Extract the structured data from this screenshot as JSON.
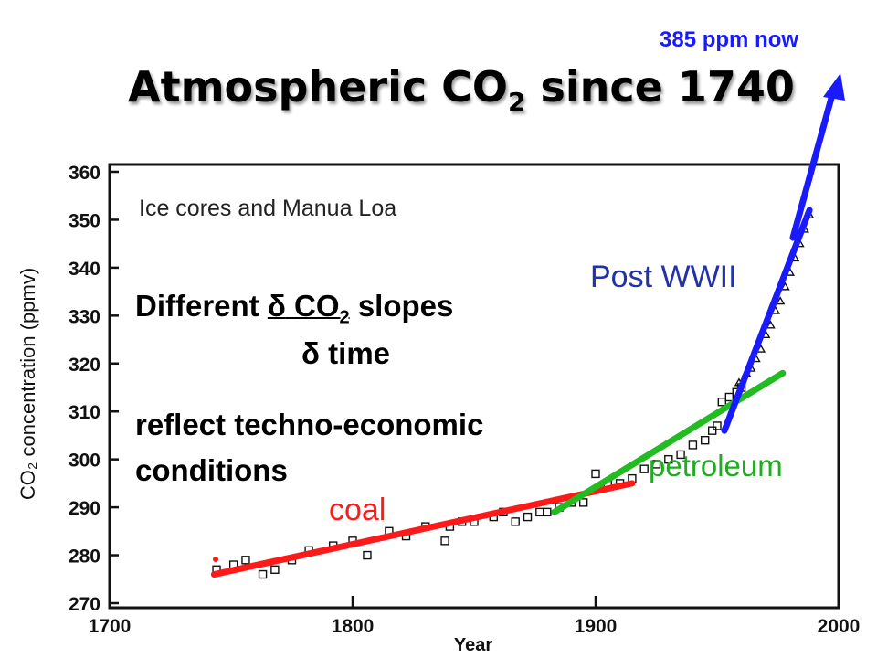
{
  "title": {
    "main": "Atmospheric CO",
    "sub": "2",
    "rest": " since 1740"
  },
  "annotation_top": "385 ppm now",
  "overlay": {
    "slope_prefix": "Different ",
    "delta": "δ",
    "slope_co": " CO",
    "slope_sub": "2",
    "slope_suffix": " slopes",
    "time_text": " time",
    "reflect1": "reflect techno-economic",
    "reflect2": "conditions"
  },
  "colors": {
    "coal": "#ff1a1a",
    "petroleum": "#22bb22",
    "post_wwii": "#1a1aff",
    "inset_blue": "#2233aa",
    "arrow": "#1a1aff"
  },
  "chart_data": {
    "type": "scatter",
    "inset_title": "Ice cores and Manua Loa",
    "xlabel": "Year",
    "ylabel": "CO₂ concentration (ppmv)",
    "xlim": [
      1700,
      2000
    ],
    "ylim": [
      270,
      360
    ],
    "x_ticks": [
      1700,
      1800,
      1900,
      2000
    ],
    "y_ticks": [
      270,
      280,
      290,
      300,
      310,
      320,
      330,
      340,
      350,
      360
    ],
    "grid": false,
    "series": [
      {
        "name": "Ice cores",
        "marker": "square",
        "points": [
          [
            1744,
            277
          ],
          [
            1751,
            278
          ],
          [
            1756,
            279
          ],
          [
            1763,
            276
          ],
          [
            1768,
            277
          ],
          [
            1775,
            279
          ],
          [
            1782,
            281
          ],
          [
            1792,
            282
          ],
          [
            1800,
            283
          ],
          [
            1806,
            280
          ],
          [
            1815,
            285
          ],
          [
            1822,
            284
          ],
          [
            1830,
            286
          ],
          [
            1838,
            283
          ],
          [
            1840,
            286
          ],
          [
            1845,
            287
          ],
          [
            1850,
            287
          ],
          [
            1858,
            288
          ],
          [
            1862,
            289
          ],
          [
            1867,
            287
          ],
          [
            1872,
            288
          ],
          [
            1877,
            289
          ],
          [
            1880,
            289
          ],
          [
            1885,
            290
          ],
          [
            1890,
            291
          ],
          [
            1895,
            291
          ],
          [
            1900,
            297
          ],
          [
            1905,
            295
          ],
          [
            1910,
            295
          ],
          [
            1915,
            296
          ],
          [
            1920,
            298
          ],
          [
            1925,
            299
          ],
          [
            1930,
            300
          ],
          [
            1935,
            301
          ],
          [
            1940,
            303
          ],
          [
            1945,
            304
          ],
          [
            1948,
            306
          ],
          [
            1950,
            307
          ],
          [
            1952,
            312
          ],
          [
            1955,
            313
          ],
          [
            1958,
            314
          ],
          [
            1960,
            315
          ]
        ]
      },
      {
        "name": "Manua Loa",
        "marker": "triangle",
        "points": [
          [
            1959,
            316
          ],
          [
            1962,
            318
          ],
          [
            1964,
            319
          ],
          [
            1966,
            321
          ],
          [
            1968,
            323
          ],
          [
            1970,
            326
          ],
          [
            1972,
            328
          ],
          [
            1974,
            331
          ],
          [
            1976,
            333
          ],
          [
            1978,
            336
          ],
          [
            1980,
            339
          ],
          [
            1982,
            342
          ],
          [
            1984,
            345
          ],
          [
            1986,
            348
          ],
          [
            1988,
            351
          ]
        ]
      }
    ],
    "trend_lines": [
      {
        "name": "coal",
        "color": "#ff1a1a",
        "x": [
          1743,
          1915
        ],
        "y": [
          276,
          295
        ]
      },
      {
        "name": "petroleum",
        "color": "#22bb22",
        "x": [
          1883,
          1977
        ],
        "y": [
          289,
          318
        ]
      },
      {
        "name": "Post WWII",
        "color": "#1a1aff",
        "x": [
          1953,
          1988
        ],
        "y": [
          306,
          352
        ]
      }
    ],
    "arrow": {
      "label": "385 ppm now"
    }
  }
}
